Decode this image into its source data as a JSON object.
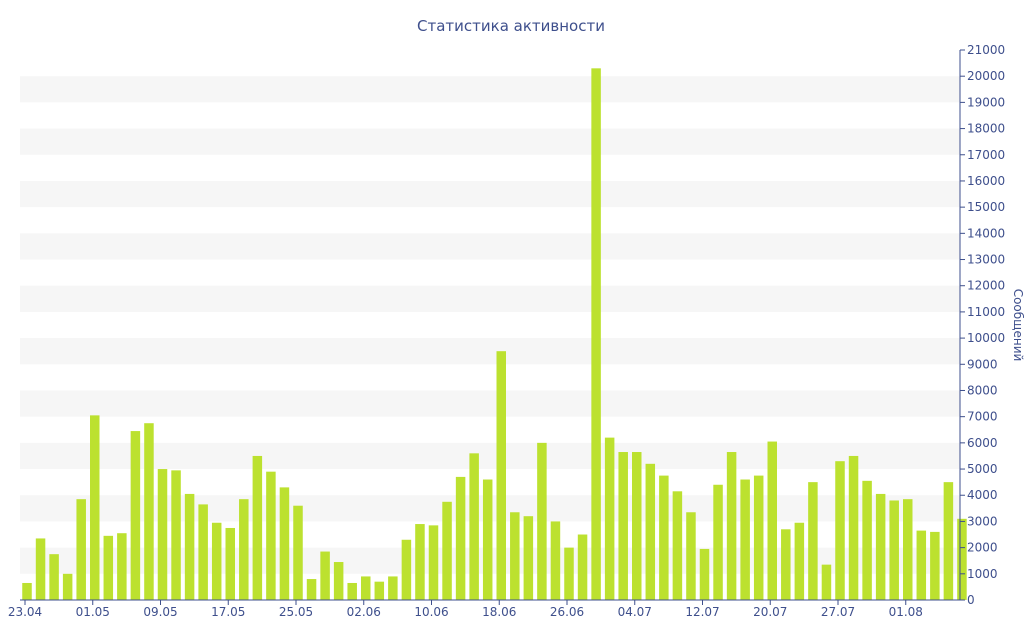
{
  "chart_data": {
    "type": "bar",
    "title": "Статистика активности",
    "xlabel": "",
    "ylabel": "Сообщений",
    "ylim": [
      0,
      21000
    ],
    "y_ticks": [
      0,
      1000,
      2000,
      3000,
      4000,
      5000,
      6000,
      7000,
      8000,
      9000,
      10000,
      11000,
      12000,
      13000,
      14000,
      15000,
      16000,
      17000,
      18000,
      19000,
      20000,
      21000
    ],
    "y_axis_side": "right",
    "x_tick_labels": [
      {
        "label": "23.04",
        "index": 0
      },
      {
        "label": "01.05",
        "index": 5
      },
      {
        "label": "09.05",
        "index": 10
      },
      {
        "label": "17.05",
        "index": 15
      },
      {
        "label": "25.05",
        "index": 20
      },
      {
        "label": "02.06",
        "index": 25
      },
      {
        "label": "10.06",
        "index": 30
      },
      {
        "label": "18.06",
        "index": 35
      },
      {
        "label": "26.06",
        "index": 40
      },
      {
        "label": "04.07",
        "index": 45
      },
      {
        "label": "12.07",
        "index": 50
      },
      {
        "label": "20.07",
        "index": 55
      },
      {
        "label": "27.07",
        "index": 60
      },
      {
        "label": "01.08",
        "index": 65
      }
    ],
    "values": [
      650,
      2350,
      1750,
      1000,
      3850,
      7050,
      2450,
      2550,
      6450,
      6750,
      5000,
      4950,
      4050,
      3650,
      2950,
      2750,
      3850,
      5500,
      4900,
      4300,
      3600,
      800,
      1850,
      1450,
      650,
      900,
      700,
      900,
      2300,
      2900,
      2850,
      3750,
      4700,
      5600,
      4600,
      9500,
      3350,
      3200,
      6000,
      3000,
      2000,
      2500,
      20300,
      6200,
      5650,
      5650,
      5200,
      4750,
      4150,
      3350,
      1950,
      4400,
      5650,
      4600,
      4750,
      6050,
      2700,
      2950,
      4500,
      1350,
      5300,
      5500,
      4550,
      4050,
      3800,
      3850,
      2650,
      2600,
      4500,
      3100
    ],
    "bar_color": "#bce12f",
    "band_color": "#f6f6f6",
    "text_color": "#3e4f8c",
    "grid": true
  }
}
